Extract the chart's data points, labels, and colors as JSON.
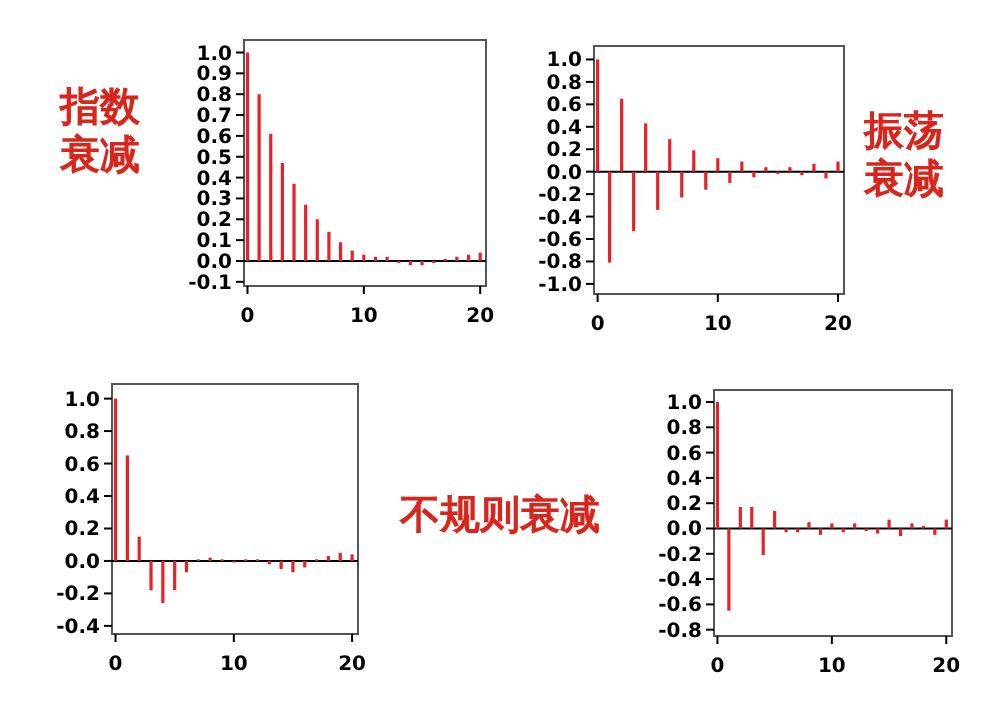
{
  "chart_data": [
    {
      "type": "bar",
      "annotations": [
        "指数衰减"
      ],
      "color": "#e8202a",
      "x": [
        0,
        1,
        2,
        3,
        4,
        5,
        6,
        7,
        8,
        9,
        10,
        11,
        12,
        13,
        14,
        15,
        16,
        17,
        18,
        19,
        20
      ],
      "values": [
        1.0,
        0.8,
        0.61,
        0.47,
        0.37,
        0.27,
        0.2,
        0.14,
        0.09,
        0.05,
        0.03,
        0.02,
        0.02,
        -0.01,
        -0.02,
        -0.02,
        -0.01,
        0.01,
        0.02,
        0.03,
        0.04
      ],
      "xlim": [
        -0.3,
        20.5
      ],
      "xticks": [
        0,
        10,
        20
      ],
      "ylim": [
        -0.12,
        1.06
      ],
      "yticks": [
        -0.1,
        {
          "value": 0,
          "label": "0.0"
        },
        0.1,
        0.2,
        0.3,
        0.4,
        0.5,
        0.6,
        0.7,
        0.8,
        0.9,
        {
          "value": 1,
          "label": "1.0"
        }
      ],
      "ref_lines": [
        {
          "axis": "y",
          "value": 0,
          "color": "#000000"
        }
      ]
    },
    {
      "type": "bar",
      "annotations": [
        "振荡衰减"
      ],
      "color": "#e8202a",
      "x": [
        0,
        1,
        2,
        3,
        4,
        5,
        6,
        7,
        8,
        9,
        10,
        11,
        12,
        13,
        14,
        15,
        16,
        17,
        18,
        19,
        20
      ],
      "values": [
        1.0,
        -0.81,
        0.65,
        -0.53,
        0.43,
        -0.34,
        0.29,
        -0.23,
        0.19,
        -0.16,
        0.12,
        -0.1,
        0.09,
        -0.05,
        0.04,
        -0.02,
        0.04,
        -0.03,
        0.07,
        -0.06,
        0.09
      ],
      "xlim": [
        -0.3,
        20.5
      ],
      "xticks": [
        0,
        10,
        20
      ],
      "ylim": [
        -1.09,
        1.12
      ],
      "yticks": [
        {
          "value": -1,
          "label": "-1.0"
        },
        -0.8,
        -0.6,
        -0.4,
        -0.2,
        {
          "value": 0,
          "label": "0.0"
        },
        0.2,
        0.4,
        0.6,
        0.8,
        {
          "value": 1,
          "label": "1.0"
        }
      ],
      "ref_lines": [
        {
          "axis": "y",
          "value": 0,
          "color": "#000000"
        }
      ]
    },
    {
      "type": "bar",
      "annotations": [
        "不规则衰减"
      ],
      "color": "#e8202a",
      "x": [
        0,
        1,
        2,
        3,
        4,
        5,
        6,
        7,
        8,
        9,
        10,
        11,
        12,
        13,
        14,
        15,
        16,
        17,
        18,
        19,
        20
      ],
      "values": [
        1.0,
        0.65,
        0.15,
        -0.18,
        -0.26,
        -0.18,
        -0.07,
        0.01,
        0.02,
        0.01,
        -0.01,
        0.01,
        0.01,
        -0.02,
        -0.05,
        -0.07,
        -0.04,
        0.01,
        0.03,
        0.05,
        0.04
      ],
      "xlim": [
        -0.3,
        20.5
      ],
      "xticks": [
        0,
        10,
        20
      ],
      "ylim": [
        -0.45,
        1.09
      ],
      "yticks": [
        -0.4,
        -0.2,
        {
          "value": 0,
          "label": "0.0"
        },
        0.2,
        0.4,
        0.6,
        0.8,
        {
          "value": 1,
          "label": "1.0"
        }
      ],
      "ref_lines": [
        {
          "axis": "y",
          "value": 0,
          "color": "#000000"
        }
      ]
    },
    {
      "type": "bar",
      "color": "#e8202a",
      "x": [
        0,
        1,
        2,
        3,
        4,
        5,
        6,
        7,
        8,
        9,
        10,
        11,
        12,
        13,
        14,
        15,
        16,
        17,
        18,
        19,
        20
      ],
      "values": [
        1.0,
        -0.65,
        0.17,
        0.17,
        -0.21,
        0.14,
        -0.03,
        -0.03,
        0.05,
        -0.05,
        0.04,
        -0.03,
        0.04,
        -0.02,
        -0.04,
        0.07,
        -0.06,
        0.04,
        0.02,
        -0.05,
        0.07
      ],
      "xlim": [
        -0.3,
        20.5
      ],
      "xticks": [
        0,
        10,
        20
      ],
      "ylim": [
        -0.85,
        1.095
      ],
      "yticks": [
        -0.8,
        -0.6,
        -0.4,
        -0.2,
        {
          "value": 0,
          "label": "0.0"
        },
        0.2,
        0.4,
        0.6,
        0.8,
        {
          "value": 1,
          "label": "1.0"
        }
      ],
      "ref_lines": [
        {
          "axis": "y",
          "value": 0,
          "color": "#000000"
        }
      ]
    }
  ]
}
